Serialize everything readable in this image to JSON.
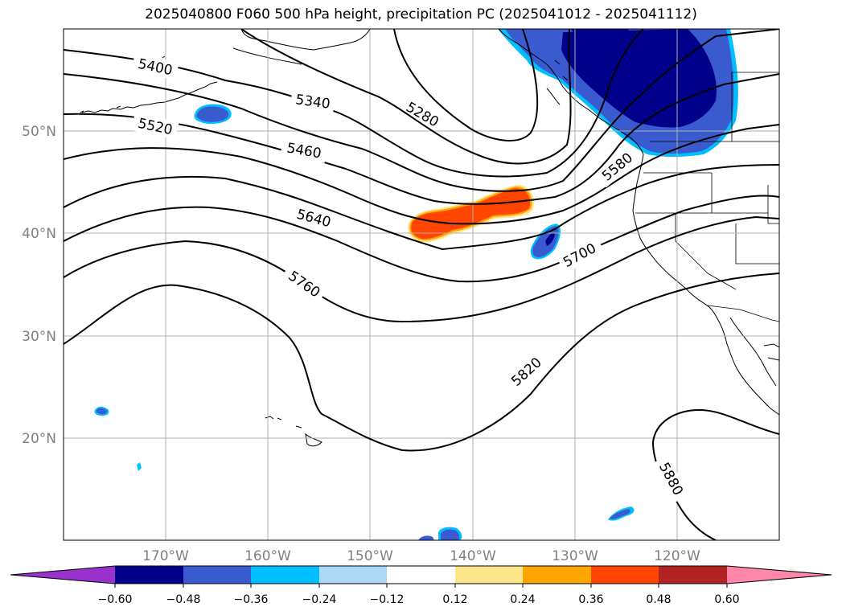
{
  "title": "2025040800 F060 500 hPa height, precipitation PC (2025041012 - 2025041112)",
  "map": {
    "lon_range": [
      -180,
      -110
    ],
    "lat_range": [
      10,
      60
    ],
    "lon_ticks": [
      {
        "value": -170,
        "label": "170°W"
      },
      {
        "value": -160,
        "label": "160°W"
      },
      {
        "value": -150,
        "label": "150°W"
      },
      {
        "value": -140,
        "label": "140°W"
      },
      {
        "value": -130,
        "label": "130°W"
      },
      {
        "value": -120,
        "label": "120°W"
      }
    ],
    "lat_ticks": [
      {
        "value": 20,
        "label": "20°N"
      },
      {
        "value": 30,
        "label": "30°N"
      },
      {
        "value": 40,
        "label": "40°N"
      },
      {
        "value": 50,
        "label": "50°N"
      }
    ],
    "grid": true
  },
  "contours": {
    "variable": "500 hPa height",
    "labels": [
      "5280",
      "5340",
      "5400",
      "5460",
      "5520",
      "5580",
      "5640",
      "5700",
      "5760",
      "5820",
      "5880"
    ]
  },
  "colorbar": {
    "ticks": [
      "−0.60",
      "−0.48",
      "−0.36",
      "−0.24",
      "−0.12",
      "0.12",
      "0.24",
      "0.36",
      "0.48",
      "0.60"
    ],
    "colors": [
      "#9932cc",
      "#00008b",
      "#3a5bcf",
      "#00bfff",
      "#add8f6",
      "#ffffff",
      "#fde68a",
      "#ffa500",
      "#ff4500",
      "#b22222",
      "#ff88aa"
    ]
  }
}
